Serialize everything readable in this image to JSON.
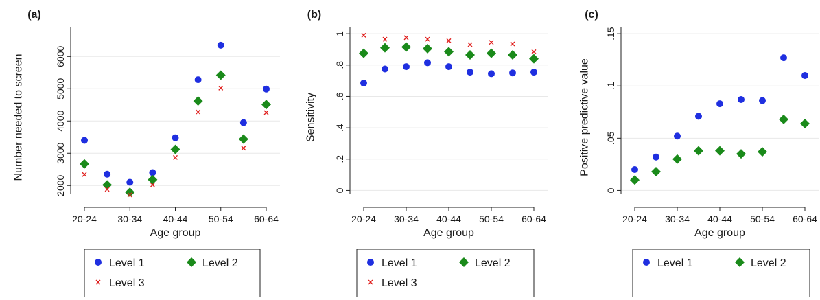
{
  "colors": {
    "level1": "#1f2fe0",
    "level2": "#1a8a1a",
    "level3": "#e0201e",
    "grid": "#e8e8e8",
    "axis": "#222222"
  },
  "chart_data": [
    {
      "panel_label": "(a)",
      "type": "scatter",
      "xlabel": "Age group",
      "ylabel": "Number needed to screen",
      "categories": [
        "20-24",
        "25-29",
        "30-34",
        "35-39",
        "40-44",
        "45-49",
        "50-54",
        "55-59",
        "60-64"
      ],
      "x_tick_labels": [
        "20-24",
        "30-34",
        "40-44",
        "50-54",
        "60-64"
      ],
      "x_tick_indices": [
        0,
        2,
        4,
        6,
        8
      ],
      "ylim": [
        1750,
        6900
      ],
      "yticks": [
        2000,
        3000,
        4000,
        5000,
        6000
      ],
      "ytick_labels": [
        "2000",
        "3000",
        "4000",
        "5000",
        "6000"
      ],
      "grid": true,
      "series": [
        {
          "name": "Level 1",
          "marker": "circle",
          "values": [
            3400,
            2350,
            2100,
            2400,
            3480,
            5280,
            6350,
            3950,
            4990
          ]
        },
        {
          "name": "Level 2",
          "marker": "diamond",
          "values": [
            2670,
            2020,
            1790,
            2180,
            3120,
            4620,
            5420,
            3440,
            4510
          ]
        },
        {
          "name": "Level 3",
          "marker": "x",
          "values": [
            2340,
            1880,
            1710,
            2020,
            2870,
            4280,
            5020,
            3160,
            4260
          ]
        }
      ],
      "legend": {
        "placement": "bottom",
        "entries": [
          "Level 1",
          "Level 2",
          "Level 3"
        ]
      }
    },
    {
      "panel_label": "(b)",
      "type": "scatter",
      "xlabel": "Age group",
      "ylabel": "Sensitivity",
      "categories": [
        "20-24",
        "25-29",
        "30-34",
        "35-39",
        "40-44",
        "45-49",
        "50-54",
        "55-59",
        "60-64"
      ],
      "x_tick_labels": [
        "20-24",
        "30-34",
        "40-44",
        "50-54",
        "60-64"
      ],
      "x_tick_indices": [
        0,
        2,
        4,
        6,
        8
      ],
      "ylim": [
        -0.02,
        1.04
      ],
      "yticks": [
        0,
        0.2,
        0.4,
        0.6,
        0.8,
        1
      ],
      "ytick_labels": [
        "0",
        ".2",
        ".4",
        ".6",
        ".8",
        "1"
      ],
      "grid": true,
      "series": [
        {
          "name": "Level 1",
          "marker": "circle",
          "values": [
            0.685,
            0.775,
            0.79,
            0.815,
            0.79,
            0.755,
            0.745,
            0.75,
            0.755
          ]
        },
        {
          "name": "Level 2",
          "marker": "diamond",
          "values": [
            0.875,
            0.91,
            0.915,
            0.905,
            0.885,
            0.865,
            0.875,
            0.865,
            0.84
          ]
        },
        {
          "name": "Level 3",
          "marker": "x",
          "values": [
            0.99,
            0.965,
            0.975,
            0.965,
            0.955,
            0.93,
            0.945,
            0.935,
            0.885
          ]
        }
      ],
      "legend": {
        "placement": "bottom",
        "entries": [
          "Level 1",
          "Level 2",
          "Level 3"
        ]
      }
    },
    {
      "panel_label": "(c)",
      "type": "scatter",
      "xlabel": "Age group",
      "ylabel": "Positive predictive value",
      "categories": [
        "20-24",
        "25-29",
        "30-34",
        "35-39",
        "40-44",
        "45-49",
        "50-54",
        "55-59",
        "60-64"
      ],
      "x_tick_labels": [
        "20-24",
        "30-34",
        "40-44",
        "50-54",
        "60-64"
      ],
      "x_tick_indices": [
        0,
        2,
        4,
        6,
        8
      ],
      "ylim": [
        -0.003,
        0.156
      ],
      "yticks": [
        0,
        0.05,
        0.1,
        0.15
      ],
      "ytick_labels": [
        "0",
        ".05",
        ".1",
        ".15"
      ],
      "grid": true,
      "series": [
        {
          "name": "Level 1",
          "marker": "circle",
          "values": [
            0.02,
            0.032,
            0.052,
            0.071,
            0.083,
            0.087,
            0.086,
            0.127,
            0.11
          ]
        },
        {
          "name": "Level 2",
          "marker": "diamond",
          "values": [
            0.01,
            0.018,
            0.03,
            0.038,
            0.038,
            0.035,
            0.037,
            0.068,
            0.064
          ]
        }
      ],
      "legend": {
        "placement": "bottom",
        "entries": [
          "Level 1",
          "Level 2"
        ]
      }
    }
  ]
}
